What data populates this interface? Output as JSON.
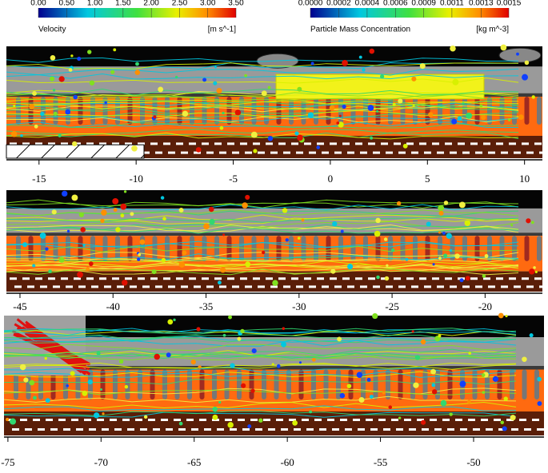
{
  "colorbars": [
    {
      "title": "Velocity",
      "unit": "[m s^-1]",
      "lim": [
        0,
        3.5
      ],
      "ticks": [
        {
          "value": 0,
          "label": "0.00"
        },
        {
          "value": 0.5,
          "label": "0.50"
        },
        {
          "value": 1,
          "label": "1.00"
        },
        {
          "value": 1.5,
          "label": "1.50"
        },
        {
          "value": 2,
          "label": "2.00"
        },
        {
          "value": 2.5,
          "label": "2.50"
        },
        {
          "value": 3,
          "label": "3.00"
        },
        {
          "value": 3.5,
          "label": "3.50"
        }
      ]
    },
    {
      "title": "Particle Mass Concentration",
      "unit": "[kg m^-3]",
      "lim": [
        0,
        0.0015
      ],
      "ticks": [
        {
          "value": 0,
          "label": "0.0000"
        },
        {
          "value": 0.000214,
          "label": "0.0002"
        },
        {
          "value": 0.000429,
          "label": "0.0004"
        },
        {
          "value": 0.000643,
          "label": "0.0006"
        },
        {
          "value": 0.000857,
          "label": "0.0009"
        },
        {
          "value": 0.00107,
          "label": "0.0011"
        },
        {
          "value": 0.00129,
          "label": "0.0013"
        },
        {
          "value": 0.0015,
          "label": "0.0015"
        }
      ]
    }
  ],
  "panels": [
    {
      "xlim": [
        -16.68,
        10.92
      ],
      "xticks": [
        -15,
        -10,
        -5,
        0,
        5,
        10
      ]
    },
    {
      "xlim": [
        -45.73,
        -16.92
      ],
      "xticks": [
        -45,
        -40,
        -35,
        -30,
        -25,
        -20
      ]
    },
    {
      "xlim": [
        -75.21,
        -46.22
      ],
      "xticks": [
        -75,
        -70,
        -65,
        -60,
        -55,
        -50
      ]
    }
  ]
}
